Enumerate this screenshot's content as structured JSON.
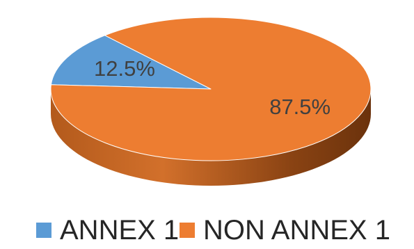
{
  "chart_data": {
    "type": "pie",
    "style": "3d",
    "title": "",
    "categories": [
      "ANNEX 1",
      "NON ANNEX 1"
    ],
    "values": [
      12.5,
      87.5
    ],
    "unit": "%",
    "data_labels": [
      "12.5%",
      "87.5%"
    ],
    "colors": [
      "#5B9BD5",
      "#ED7D31"
    ],
    "legend_placement": "bottom"
  },
  "legend": {
    "items": [
      {
        "label": "ANNEX 1",
        "color": "#5B9BD5"
      },
      {
        "label": "NON ANNEX 1",
        "color": "#ED7D31"
      }
    ]
  }
}
